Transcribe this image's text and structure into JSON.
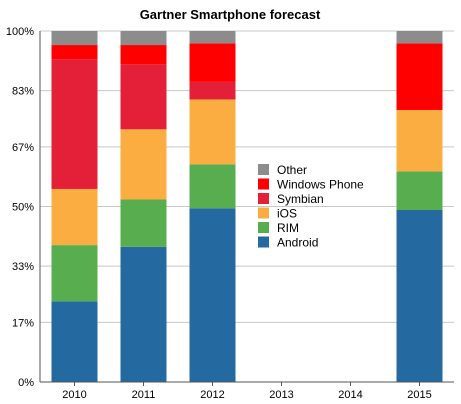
{
  "chart_data": {
    "type": "bar",
    "stacked": true,
    "normalized": true,
    "title": "Gartner Smartphone forecast",
    "xlabel": "",
    "ylabel": "",
    "ylim": [
      0,
      100
    ],
    "yticks": [
      0,
      17,
      33,
      50,
      67,
      83,
      100
    ],
    "ytick_labels": [
      "0%",
      "17%",
      "33%",
      "50%",
      "67%",
      "83%",
      "100%"
    ],
    "categories": [
      "2010",
      "2011",
      "2012",
      "2013",
      "2014",
      "2015"
    ],
    "grid": true,
    "legend_position": "center",
    "series": [
      {
        "name": "Android",
        "color": "#2469a0",
        "values": [
          23,
          38.5,
          49.5,
          null,
          null,
          49
        ]
      },
      {
        "name": "RIM",
        "color": "#58ad4f",
        "values": [
          16,
          13.5,
          12.5,
          null,
          null,
          11
        ]
      },
      {
        "name": "iOS",
        "color": "#fcad41",
        "values": [
          16,
          20,
          18.5,
          null,
          null,
          17.5
        ]
      },
      {
        "name": "Symbian",
        "color": "#e32038",
        "values": [
          37,
          18.5,
          5,
          null,
          null,
          0
        ]
      },
      {
        "name": "Windows Phone",
        "color": "#ff0000",
        "values": [
          4,
          5.5,
          11,
          null,
          null,
          19
        ]
      },
      {
        "name": "Other",
        "color": "#8c8c8c",
        "values": [
          4,
          4,
          3.5,
          null,
          null,
          3.5
        ]
      }
    ],
    "legend_order": [
      "Other",
      "Windows Phone",
      "Symbian",
      "iOS",
      "RIM",
      "Android"
    ]
  }
}
